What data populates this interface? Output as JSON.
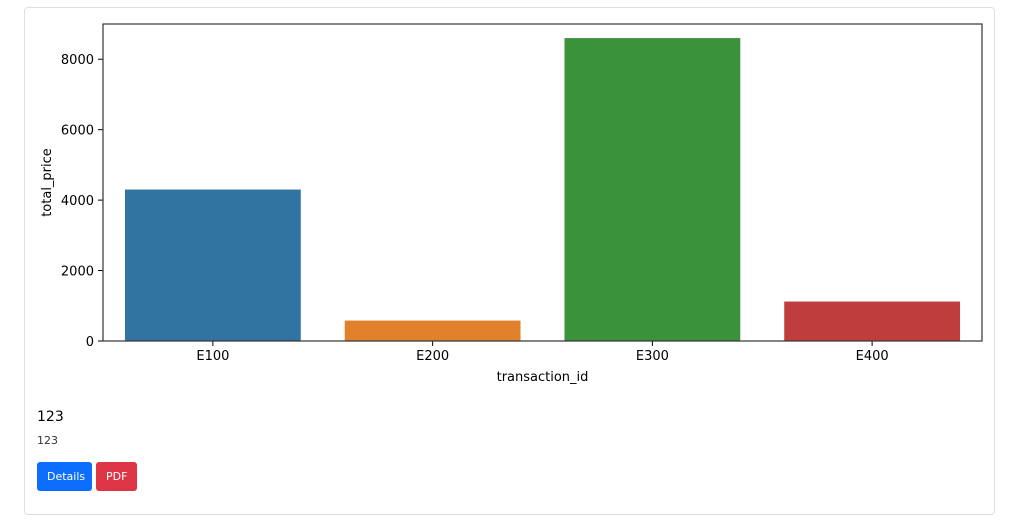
{
  "chart_data": {
    "type": "bar",
    "categories": [
      "E100",
      "E200",
      "E300",
      "E400"
    ],
    "values": [
      4300,
      580,
      8600,
      1120
    ],
    "colors": [
      "#3274a1",
      "#e1812c",
      "#3a923a",
      "#c03d3e"
    ],
    "xlabel": "transaction_id",
    "ylabel": "total_price",
    "ylim": [
      0,
      9000
    ],
    "yticks": [
      0,
      2000,
      4000,
      6000,
      8000
    ],
    "grid": false
  },
  "card": {
    "title": "123",
    "subtitle": "123"
  },
  "buttons": {
    "details_label": "Details",
    "pdf_label": "PDF",
    "details_color": "#0d6efd",
    "pdf_color": "#dc3545"
  }
}
